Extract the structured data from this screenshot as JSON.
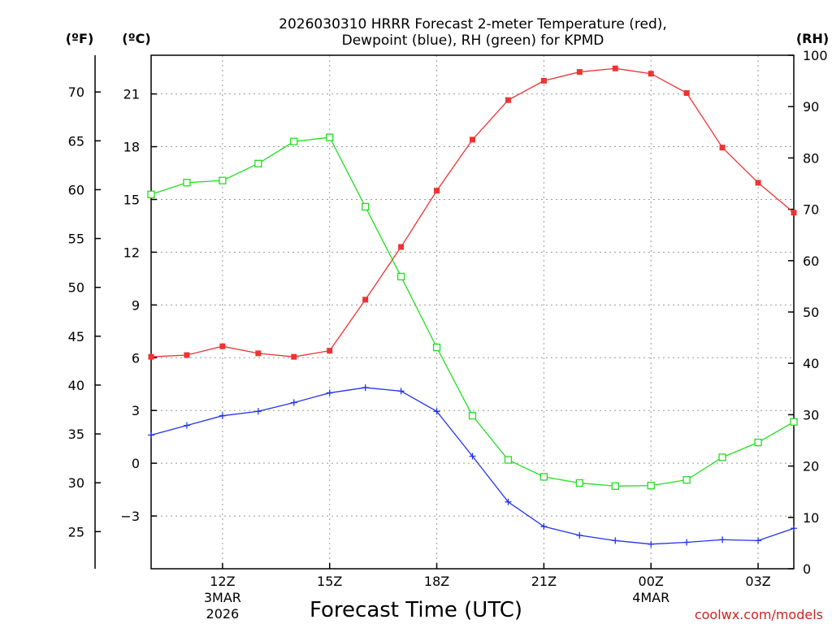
{
  "chart_data": {
    "type": "line",
    "title": {
      "line1": "2026030310 HRRR Forecast 2-meter Temperature (red),",
      "line2": "Dewpoint (blue), RH (green) for KPMD"
    },
    "xlabel": "Forecast Time (UTC)",
    "credit": "coolwx.com/models",
    "units": {
      "fahrenheit": "(ºF)",
      "celsius": "(ºC)",
      "rh": "(RH)"
    },
    "x_hours": [
      10,
      11,
      12,
      13,
      14,
      15,
      16,
      17,
      18,
      19,
      20,
      21,
      22,
      23,
      24,
      25,
      26,
      27,
      28
    ],
    "xlim": [
      10,
      28
    ],
    "x_ticks": [
      {
        "hour": 12,
        "label": "12Z",
        "sub1": "3MAR",
        "sub2": "2026"
      },
      {
        "hour": 15,
        "label": "15Z",
        "sub1": "",
        "sub2": ""
      },
      {
        "hour": 18,
        "label": "18Z",
        "sub1": "",
        "sub2": ""
      },
      {
        "hour": 21,
        "label": "21Z",
        "sub1": "",
        "sub2": ""
      },
      {
        "hour": 24,
        "label": "00Z",
        "sub1": "4MAR",
        "sub2": ""
      },
      {
        "hour": 27,
        "label": "03Z",
        "sub1": "",
        "sub2": ""
      }
    ],
    "celsius_axis": {
      "range": [
        -6,
        23.2
      ],
      "ticks": [
        "21",
        "18",
        "15",
        "12",
        "9",
        "6",
        "3",
        "0",
        "−3"
      ],
      "tick_values": [
        21,
        18,
        15,
        12,
        9,
        6,
        3,
        0,
        -3
      ]
    },
    "fahrenheit_axis": {
      "ticks": [
        "70",
        "65",
        "60",
        "55",
        "50",
        "45",
        "40",
        "35",
        "30",
        "25"
      ],
      "tick_values": [
        70,
        65,
        60,
        55,
        50,
        45,
        40,
        35,
        30,
        25
      ]
    },
    "rh_axis": {
      "range": [
        0,
        100
      ],
      "ticks": [
        "100",
        "90",
        "80",
        "70",
        "60",
        "50",
        "40",
        "30",
        "20",
        "10",
        "0"
      ],
      "tick_values": [
        100,
        90,
        80,
        70,
        60,
        50,
        40,
        30,
        20,
        10,
        0
      ]
    },
    "series": [
      {
        "name": "Temperature",
        "axis": "celsius",
        "color": "#ee3333",
        "marker": "filled-square",
        "values": [
          6.05,
          6.15,
          6.65,
          6.25,
          6.05,
          6.4,
          9.3,
          12.3,
          15.5,
          18.4,
          20.65,
          21.75,
          22.25,
          22.45,
          22.15,
          21.05,
          17.95,
          15.95,
          14.25
        ]
      },
      {
        "name": "Dewpoint",
        "axis": "celsius",
        "color": "#2233ee",
        "marker": "plus",
        "values": [
          1.6,
          2.15,
          2.7,
          2.95,
          3.45,
          4.0,
          4.3,
          4.1,
          2.95,
          0.4,
          -2.2,
          -3.6,
          -4.1,
          -4.4,
          -4.6,
          -4.5,
          -4.35,
          -4.4,
          -3.7
        ]
      },
      {
        "name": "RH",
        "axis": "rh",
        "color": "#22dd22",
        "marker": "open-square",
        "values": [
          72.9,
          75.2,
          75.6,
          78.9,
          83.2,
          84.0,
          70.5,
          56.9,
          43.1,
          29.8,
          21.2,
          17.9,
          16.7,
          16.1,
          16.2,
          17.3,
          21.7,
          24.6,
          28.6
        ]
      }
    ]
  }
}
